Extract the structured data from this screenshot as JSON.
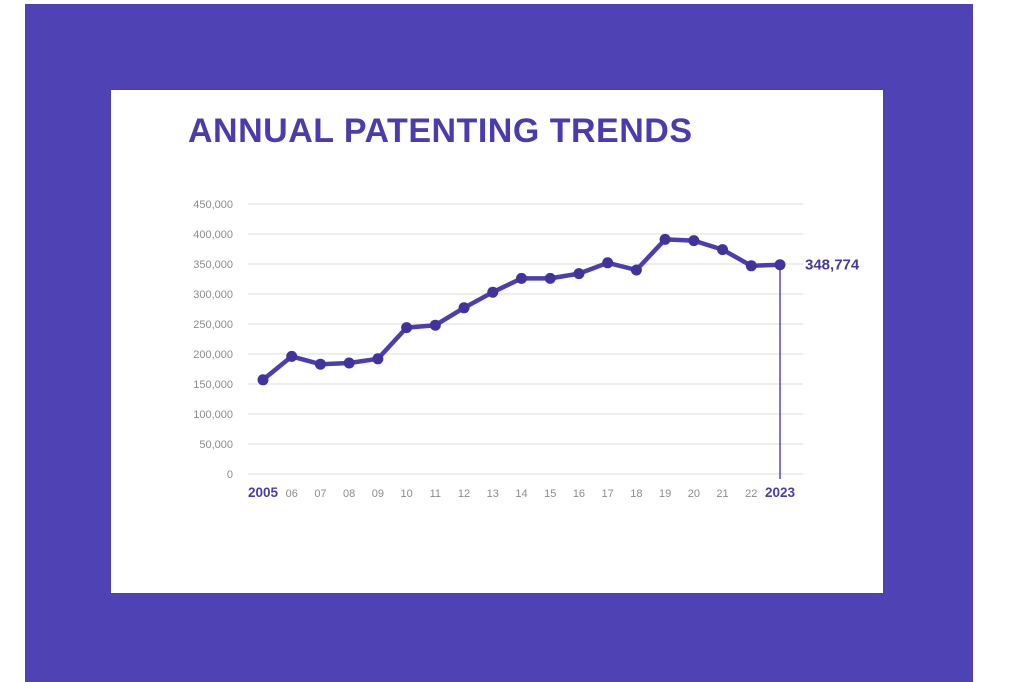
{
  "page": {
    "outer_background": "#ffffff",
    "frame_color": "#4f42b5"
  },
  "chart_data": {
    "type": "line",
    "title": "ANNUAL PATENTING TRENDS",
    "categories": [
      "2005",
      "06",
      "07",
      "08",
      "09",
      "10",
      "11",
      "12",
      "13",
      "14",
      "15",
      "16",
      "17",
      "18",
      "19",
      "20",
      "21",
      "22",
      "2023"
    ],
    "values": [
      157000,
      196000,
      183000,
      185000,
      192000,
      244000,
      248000,
      277000,
      303000,
      326000,
      326000,
      334000,
      352000,
      340000,
      391000,
      389000,
      374000,
      347000,
      348774
    ],
    "ylim": [
      0,
      450000
    ],
    "ytick_step": 50000,
    "ytick_labels": [
      "0",
      "50,000",
      "100,000",
      "150,000",
      "200,000",
      "250,000",
      "300,000",
      "350,000",
      "400,000",
      "450,000"
    ],
    "xlabel": "",
    "ylabel": "",
    "grid": "horizontal",
    "legend": "none",
    "annotation": {
      "text": "348,774",
      "target_category": "2023"
    },
    "colors": {
      "title": "#4a3cae",
      "line": "#4c3eaf",
      "marker": "#41339e",
      "grid": "#e4e4e2",
      "tick_gray": "#8c8c8c",
      "tick_purple": "#4a3cae",
      "annotation": "#423a9c",
      "drop_line": "#4c3eaf"
    }
  }
}
